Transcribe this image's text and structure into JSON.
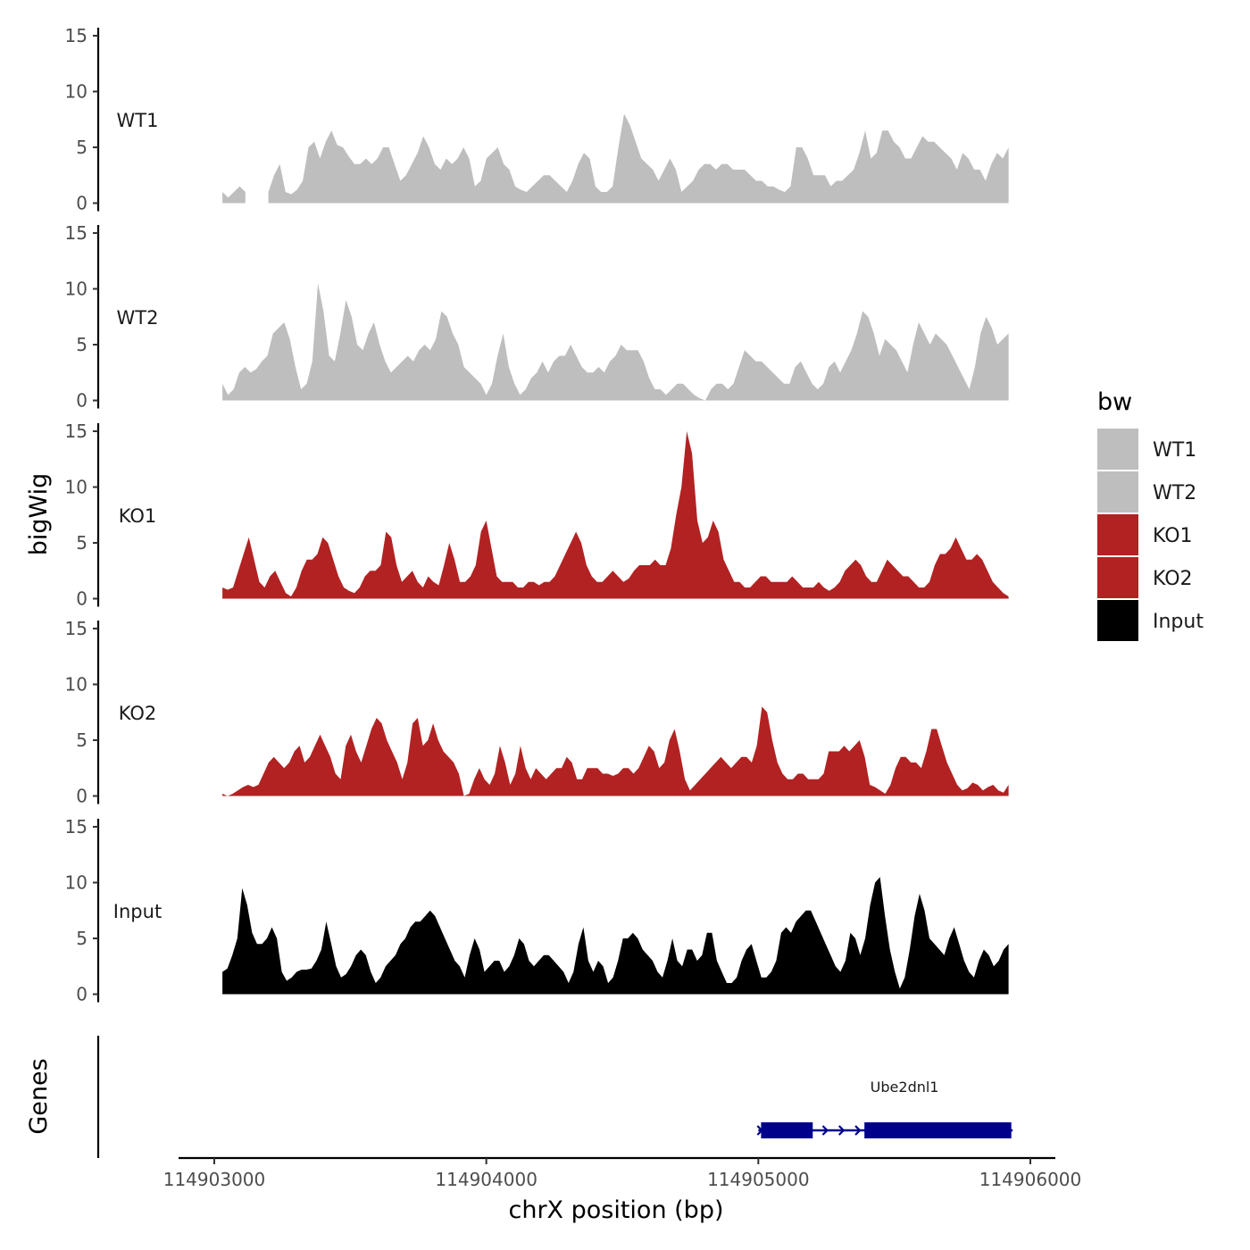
{
  "chart_data": {
    "type": "area",
    "ylabel": "bigWig",
    "xlabel": "chrX position (bp)",
    "x_ticks": [
      114903000,
      114904000,
      114905000,
      114906000
    ],
    "x_tick_labels": [
      "114903000",
      "114904000",
      "114905000",
      "114906000"
    ],
    "xlim": [
      114902870,
      114906080
    ],
    "x_start": 114903030,
    "x_end": 114905920,
    "ylim": [
      0,
      15
    ],
    "y_ticks": [
      0,
      5,
      10,
      15
    ],
    "y_tick_labels": [
      "0",
      "5",
      "10",
      "15"
    ],
    "legend": {
      "title": "bw",
      "entries": [
        {
          "label": "WT1",
          "color": "#BEBEBE"
        },
        {
          "label": "WT2",
          "color": "#BEBEBE"
        },
        {
          "label": "KO1",
          "color": "#B22222"
        },
        {
          "label": "KO2",
          "color": "#B22222"
        },
        {
          "label": "Input",
          "color": "#000000"
        }
      ]
    },
    "series": [
      {
        "name": "WT1",
        "color": "#BEBEBE",
        "values": [
          1,
          0.5,
          1,
          1.5,
          1,
          0,
          0,
          0,
          1,
          2.5,
          3.5,
          1,
          0.8,
          1.2,
          2,
          5,
          5.5,
          4,
          5.5,
          6.5,
          5.2,
          5,
          4.2,
          3.5,
          3.5,
          4,
          3.5,
          4,
          5,
          5,
          3.5,
          2,
          2.5,
          3.5,
          4.5,
          6,
          5,
          3.5,
          3,
          4,
          3.5,
          4,
          5,
          4,
          1.5,
          2,
          4,
          4.5,
          5,
          3.5,
          3,
          1.5,
          1.2,
          1,
          1.5,
          2,
          2.5,
          2.5,
          2,
          1.5,
          1,
          2,
          3.5,
          4.5,
          4,
          1.5,
          1,
          1,
          1.5,
          5,
          8,
          7,
          5.5,
          4,
          3.5,
          3,
          2,
          3,
          4,
          3,
          1,
          1.5,
          2,
          3,
          3.5,
          3.5,
          3,
          3.5,
          3.5,
          3,
          3,
          3,
          2.5,
          2,
          2,
          1.5,
          1.5,
          1.2,
          1,
          1.5,
          5,
          5,
          4,
          2.5,
          2.5,
          2.5,
          1.5,
          2,
          2,
          2.5,
          3,
          4.5,
          6.5,
          4,
          4.5,
          6.5,
          6.5,
          5.5,
          5,
          4,
          4,
          5,
          6,
          5.5,
          5.5,
          5,
          4.5,
          4,
          3,
          4.5,
          4,
          3,
          3,
          2,
          3.5,
          4.5,
          4,
          5
        ],
        "gaps": [
          [
            5,
            7
          ]
        ]
      },
      {
        "name": "WT2",
        "color": "#BEBEBE",
        "values": [
          1.5,
          0.5,
          1,
          2.5,
          3,
          2.5,
          2.8,
          3.5,
          4,
          6,
          6.5,
          7,
          5.5,
          3,
          1,
          1.5,
          3.5,
          10.5,
          8,
          4,
          3.5,
          6,
          9,
          7.5,
          5,
          4.5,
          6,
          7,
          5,
          3.5,
          2.5,
          3,
          3.5,
          4,
          3.5,
          4.5,
          5,
          4.5,
          5.5,
          8,
          7.5,
          6,
          5,
          3,
          2.5,
          2,
          1.5,
          0.5,
          1.5,
          4,
          6,
          3,
          1.5,
          0.5,
          1,
          2,
          2.5,
          3.5,
          2.5,
          3.5,
          4,
          4,
          5,
          4,
          3,
          2.5,
          2.5,
          3,
          2.5,
          3.5,
          4,
          5,
          4.5,
          4.5,
          4.5,
          3.5,
          2,
          1,
          1,
          0.5,
          1,
          1.5,
          1.5,
          1,
          0.5,
          0.2,
          0,
          1,
          1.5,
          1.5,
          1,
          1.5,
          3,
          4.5,
          4,
          3.5,
          3.5,
          3,
          2.5,
          2,
          1.5,
          1.5,
          3,
          3.5,
          2.5,
          1.5,
          1,
          1.5,
          3,
          3.5,
          2.5,
          3.5,
          4.5,
          6,
          8,
          7.5,
          6,
          4,
          5.5,
          5,
          4.5,
          3.5,
          2.5,
          5,
          7,
          6,
          5,
          6,
          5.5,
          5,
          4,
          3,
          2,
          1,
          3,
          6,
          7.5,
          6.5,
          5,
          5.5,
          6
        ]
      },
      {
        "name": "KO1",
        "color": "#B22222",
        "values": [
          1,
          0.8,
          1,
          2.5,
          4,
          5.5,
          3.5,
          1.5,
          1,
          2,
          2.5,
          1.5,
          0.5,
          0.2,
          1,
          2.5,
          3.5,
          3.5,
          4,
          5.5,
          5,
          3.5,
          2,
          1,
          0.7,
          0.5,
          1,
          2,
          2.5,
          2.5,
          3,
          6,
          5.5,
          3,
          1.5,
          2,
          2.5,
          1.5,
          1,
          2,
          1.5,
          1.2,
          3,
          5,
          3.5,
          1.5,
          1.5,
          2,
          3,
          6,
          7,
          4.5,
          2,
          1.5,
          1.5,
          1.5,
          1,
          1,
          1.5,
          1.5,
          1.2,
          1.5,
          1.5,
          2,
          3,
          4,
          5,
          6,
          5,
          3,
          2,
          1.5,
          1.5,
          2,
          2.5,
          2,
          1.5,
          1.8,
          2.5,
          3,
          3,
          3,
          3.5,
          3,
          3,
          4.5,
          7.5,
          10,
          15,
          13,
          7,
          5,
          5.5,
          7,
          6,
          3.5,
          2.5,
          1.5,
          1.5,
          1,
          1,
          1.5,
          2,
          2,
          1.5,
          1.5,
          1.5,
          1.5,
          2,
          1.5,
          1,
          1,
          1,
          1.5,
          1,
          0.7,
          1,
          1.5,
          2.5,
          3,
          3.5,
          3,
          2,
          1.5,
          1.5,
          2.5,
          3.5,
          3,
          2.5,
          2,
          2,
          1.5,
          1,
          1,
          1.5,
          3,
          4,
          4,
          4.5,
          5.5,
          4.5,
          3.5,
          3.5,
          4,
          3.5,
          2.5,
          1.5,
          1,
          0.5,
          0.2
        ]
      },
      {
        "name": "KO2",
        "color": "#B22222",
        "values": [
          0.2,
          0,
          0.2,
          0.5,
          0.8,
          1,
          0.8,
          1,
          2,
          3,
          3.5,
          3,
          2.5,
          3,
          4,
          4.5,
          3,
          3.5,
          4.5,
          5.5,
          4.5,
          3.5,
          2,
          1.5,
          4.5,
          5.5,
          4,
          3,
          4.5,
          6,
          7,
          6.5,
          5,
          4,
          3,
          1.5,
          3,
          6.5,
          7,
          4.5,
          5,
          6.5,
          5,
          4,
          3.5,
          3,
          2,
          0,
          0.2,
          1.5,
          2.5,
          1.5,
          1,
          2,
          4.5,
          3,
          1,
          2,
          4.5,
          2.5,
          1.5,
          2.5,
          2,
          1.5,
          2,
          2.5,
          2.5,
          3.5,
          3,
          1.5,
          1.5,
          2.5,
          2.5,
          2.5,
          2,
          2,
          1.8,
          2,
          2.5,
          2.5,
          2,
          2.5,
          3.5,
          4.5,
          4,
          2.5,
          3,
          5,
          6,
          4,
          1.5,
          0.5,
          1,
          1.5,
          2,
          2.5,
          3,
          3.5,
          3,
          2.5,
          3,
          3.5,
          3.5,
          3,
          4.5,
          8,
          7.5,
          5,
          3,
          2,
          1.5,
          1.5,
          2,
          2,
          1.5,
          1.5,
          1.5,
          2,
          4,
          4,
          4,
          4.5,
          4,
          4.5,
          5,
          3.5,
          1,
          0.8,
          0.5,
          0.2,
          1,
          2.5,
          3.5,
          3.5,
          3,
          3,
          2.5,
          4,
          6,
          6,
          4.5,
          3,
          2,
          1,
          0.5,
          0.7,
          1.2,
          1,
          0.5,
          0.8,
          1,
          0.5,
          0.3,
          1
        ]
      },
      {
        "name": "Input",
        "color": "#000000",
        "values": [
          2,
          2.3,
          3.5,
          5,
          9.5,
          8,
          5.5,
          4.5,
          4.5,
          5,
          6,
          5,
          2,
          1.2,
          1.5,
          2,
          2.2,
          2.2,
          2.3,
          3,
          4,
          6.5,
          4.5,
          2.5,
          1.5,
          1.8,
          2.5,
          3.5,
          4,
          3.5,
          2,
          1,
          1.5,
          2.5,
          3,
          3.5,
          4.5,
          5,
          6,
          6.5,
          6.5,
          7,
          7.5,
          7,
          6,
          5,
          4,
          3,
          2.5,
          1.5,
          3.5,
          5,
          4,
          2,
          2.5,
          3,
          3,
          2,
          2.5,
          3.5,
          5,
          4.5,
          3,
          2.5,
          3,
          3.5,
          3.5,
          3,
          2.5,
          2,
          1,
          2,
          4.5,
          6,
          3,
          2,
          3,
          2.5,
          1,
          1.5,
          3,
          5,
          5,
          5.5,
          5,
          4,
          3.5,
          3,
          2,
          1.5,
          3,
          5,
          3,
          2.5,
          4,
          4,
          3,
          3.5,
          5.5,
          5.5,
          3,
          2,
          1,
          1,
          1.5,
          3,
          4,
          4.5,
          3,
          1.5,
          1.5,
          2,
          3,
          5.5,
          6,
          5.5,
          6.5,
          7,
          7.5,
          7.5,
          6.5,
          5.5,
          4.5,
          3.5,
          2.5,
          2,
          3,
          5.5,
          5,
          3.5,
          5,
          8,
          10,
          10.5,
          7,
          4,
          2,
          0.5,
          1.5,
          4,
          7,
          9,
          7.5,
          5,
          4.5,
          4,
          3.5,
          5,
          6,
          4.5,
          3,
          2,
          1.5,
          3,
          4,
          3.5,
          2.5,
          3,
          4,
          4.5
        ]
      }
    ],
    "gene": {
      "label": "Ube2dnl1",
      "strand": "+",
      "exons": [
        [
          114905010,
          114905200
        ],
        [
          114905390,
          114905930
        ]
      ],
      "start": 114905000,
      "end": 114905935,
      "color": "#00008B"
    },
    "gene_track_label": "Genes"
  }
}
